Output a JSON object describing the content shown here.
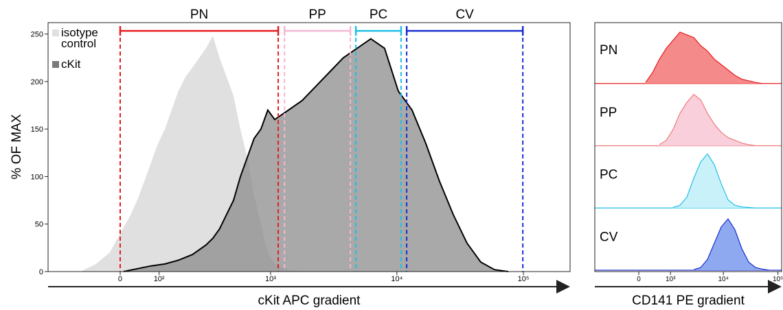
{
  "chart_data": [
    {
      "type": "area",
      "ylabel": "% OF MAX",
      "xlabel": "cKit APC gradient",
      "xscale": "arcsinh",
      "cofactor": 130,
      "xlim": [
        -224,
        234000
      ],
      "ylim": [
        0,
        262
      ],
      "yticks": [
        0,
        50,
        100,
        150,
        200,
        250
      ],
      "xticks": [
        {
          "value": 0,
          "label": "0"
        },
        {
          "value": 100,
          "label": "10²"
        },
        {
          "value": 1000,
          "label": "10³"
        },
        {
          "value": 10000,
          "label": "10⁴"
        },
        {
          "value": 100000,
          "label": "10⁵"
        }
      ],
      "gates": [
        {
          "name": "PN",
          "color": "#e8191d",
          "range": [
            0,
            1150
          ]
        },
        {
          "name": "PP",
          "color": "#f4b6d4",
          "range": [
            1290,
            4290
          ]
        },
        {
          "name": "PC",
          "color": "#1fbfe6",
          "range": [
            4740,
            10800
          ]
        },
        {
          "name": "CV",
          "color": "#1a2bd0",
          "range": [
            11960,
            99000
          ]
        }
      ],
      "series": [
        {
          "name": "isotype control",
          "color": "#e0e0e0",
          "x": [
            -97,
            -59,
            -25,
            0,
            25,
            41,
            59,
            77,
            97,
            118,
            140,
            165,
            194,
            225,
            259,
            296,
            339,
            386,
            441,
            503,
            572,
            650,
            738,
            837,
            950,
            1079,
            1387,
            1781
          ],
          "values": [
            1,
            8,
            20,
            40,
            60,
            75,
            95,
            115,
            135,
            150,
            170,
            190,
            205,
            215,
            225,
            235,
            248,
            225,
            205,
            185,
            150,
            120,
            80,
            50,
            20,
            8,
            2,
            0
          ]
        },
        {
          "name": "cKit",
          "color": "#8c8c8c",
          "x": [
            8,
            41,
            77,
            118,
            165,
            225,
            296,
            339,
            386,
            441,
            503,
            572,
            650,
            738,
            837,
            950,
            1079,
            1387,
            1781,
            2288,
            2938,
            3770,
            4849,
            6227,
            7995,
            10270,
            13182,
            16926,
            21736,
            27911,
            35841,
            46020,
            59150,
            75920
          ],
          "values": [
            0,
            3,
            6,
            8,
            12,
            18,
            28,
            35,
            45,
            60,
            75,
            100,
            120,
            140,
            150,
            170,
            160,
            170,
            180,
            195,
            210,
            225,
            235,
            245,
            235,
            190,
            170,
            135,
            95,
            60,
            30,
            10,
            2,
            0
          ]
        }
      ]
    },
    {
      "type": "ridgeline",
      "xlabel": "CD141 PE gradient",
      "xscale": "arcsinh",
      "cofactor": 563,
      "xlim": [
        -1757,
        117000
      ],
      "ylim": [
        0,
        110
      ],
      "xticks": [
        {
          "value": 0,
          "label": "0"
        },
        {
          "value": 1000,
          "label": "10³"
        },
        {
          "value": 10000,
          "label": "10⁴"
        },
        {
          "value": 100000,
          "label": "10⁵"
        }
      ],
      "series": [
        {
          "name": "PN",
          "color": "#e8191d",
          "fill": "#f48a8a",
          "x": [
            165,
            345,
            555,
            812,
            1130,
            1554,
            2105,
            2838,
            3811,
            5100,
            6810,
            9120,
            12200,
            16300,
            21800,
            29200,
            39000,
            52000
          ],
          "values": [
            2,
            20,
            45,
            65,
            80,
            95,
            90,
            85,
            70,
            60,
            45,
            35,
            25,
            15,
            8,
            5,
            2,
            0
          ]
        },
        {
          "name": "PP",
          "color": "#ee7b7b",
          "fill": "#f9cfdc",
          "x": [
            555,
            812,
            1130,
            1554,
            2105,
            2838,
            3811,
            5100,
            6810,
            9120,
            12200,
            16300,
            21800,
            29200,
            39000
          ],
          "values": [
            2,
            10,
            30,
            60,
            80,
            95,
            85,
            60,
            40,
            25,
            15,
            10,
            5,
            2,
            0
          ]
        },
        {
          "name": "PC",
          "color": "#1fbfe6",
          "fill": "#c9f1f9",
          "x": [
            1130,
            1554,
            2105,
            2838,
            3811,
            5100,
            6810,
            9120,
            12200,
            16300,
            21800,
            29200,
            39000
          ],
          "values": [
            1,
            5,
            20,
            55,
            85,
            100,
            80,
            45,
            15,
            5,
            2,
            1,
            0
          ]
        },
        {
          "name": "CV",
          "color": "#1a2bd0",
          "fill": "#8ea9f0",
          "x": [
            2838,
            3811,
            5100,
            6810,
            9120,
            12200,
            16300,
            21800,
            29200,
            39000,
            52000,
            69300
          ],
          "values": [
            1,
            5,
            20,
            50,
            80,
            95,
            75,
            40,
            15,
            5,
            2,
            0
          ]
        }
      ]
    }
  ]
}
